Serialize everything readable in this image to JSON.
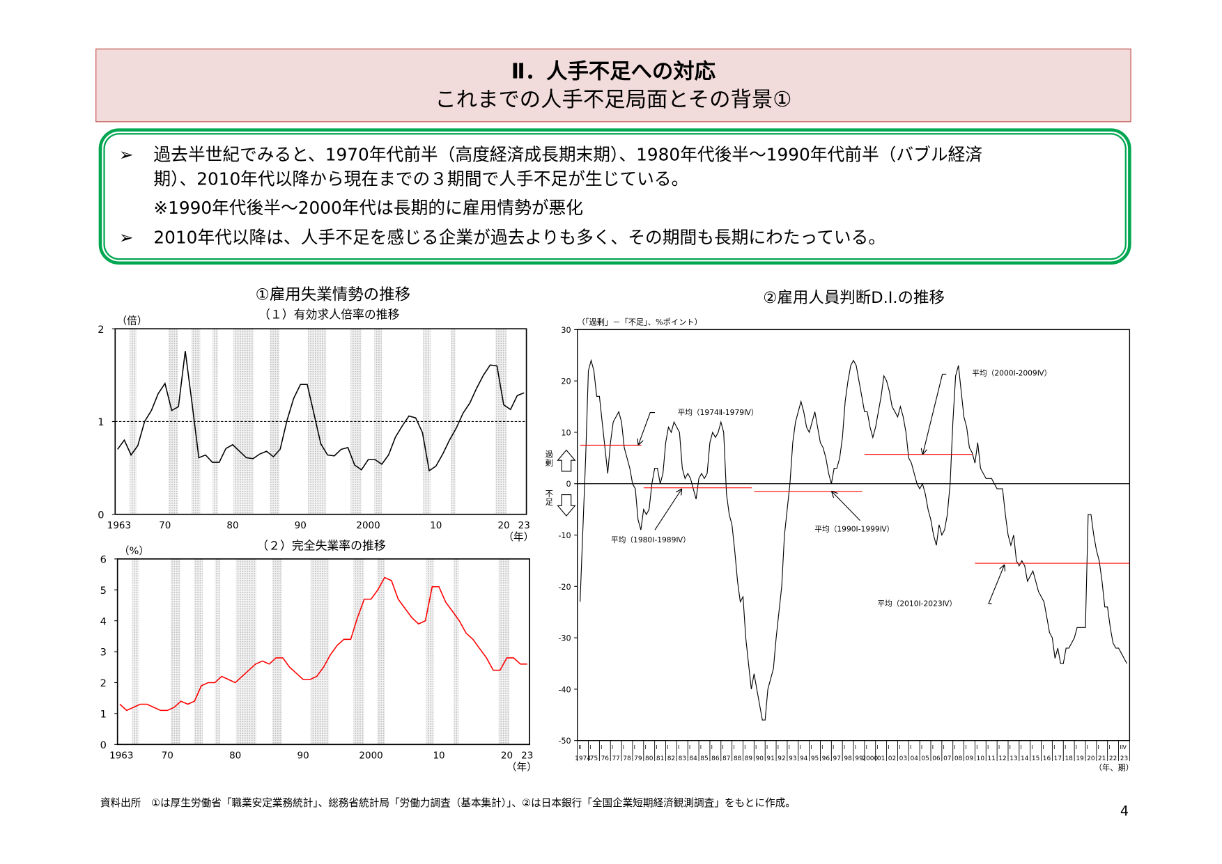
{
  "header": {
    "title_line1": "Ⅱ．人手不足への対応",
    "title_line2": "これまでの人手不足局面とその背景①"
  },
  "summary": {
    "bullet_icon": "arrowhead-bullet-icon",
    "items": [
      {
        "line1": "過去半世紀でみると、1970年代前半（高度経済成長期末期）、1980年代後半～1990年代前半（バブル経済",
        "line2": "期）、2010年代以降から現在までの３期間で人手不足が生じている。",
        "note": "※1990年代後半～2000年代は長期的に雇用情勢が悪化"
      },
      {
        "line1": "2010年代以降は、人手不足を感じる企業が過去よりも多く、その期間も長期にわたっている。"
      }
    ]
  },
  "section1_title": "①雇用失業情勢の推移",
  "section2_title": "②雇用人員判断D.I.の推移",
  "chart_data": [
    {
      "type": "line",
      "title": "（１）有効求人倍率の推移",
      "ylabel": "（倍）",
      "xlabel": "（年）",
      "ylim": [
        0,
        2
      ],
      "xlim": [
        1963,
        2023
      ],
      "y_ticks": [
        "0",
        "1",
        "2"
      ],
      "x_tick_values": [
        1963,
        1970,
        1980,
        1990,
        2000,
        2010,
        2020,
        2023
      ],
      "x_tick_labels": [
        "1963",
        "70",
        "80",
        "90",
        "2000",
        "10",
        "20",
        "23"
      ],
      "reference_line": 1,
      "line_color": "#000000",
      "shaded_periods": [
        [
          1964.8,
          1965.8
        ],
        [
          1970.5,
          1971.9
        ],
        [
          1973.9,
          1975.2
        ],
        [
          1977.0,
          1977.8
        ],
        [
          1980.1,
          1983.1
        ],
        [
          1985.5,
          1986.9
        ],
        [
          1991.1,
          1993.8
        ],
        [
          1997.4,
          1999.0
        ],
        [
          2000.9,
          2002.0
        ],
        [
          2008.1,
          2009.2
        ],
        [
          2012.2,
          2012.9
        ],
        [
          2018.8,
          2020.4
        ]
      ],
      "x": [
        1963,
        1964,
        1965,
        1966,
        1967,
        1968,
        1969,
        1970,
        1971,
        1972,
        1973,
        1974,
        1975,
        1976,
        1977,
        1978,
        1979,
        1980,
        1981,
        1982,
        1983,
        1984,
        1985,
        1986,
        1987,
        1988,
        1989,
        1990,
        1991,
        1992,
        1993,
        1994,
        1995,
        1996,
        1997,
        1998,
        1999,
        2000,
        2001,
        2002,
        2003,
        2004,
        2005,
        2006,
        2007,
        2008,
        2009,
        2010,
        2011,
        2012,
        2013,
        2014,
        2015,
        2016,
        2017,
        2018,
        2019,
        2020,
        2021,
        2022,
        2023
      ],
      "values": [
        0.7,
        0.8,
        0.64,
        0.74,
        1.0,
        1.12,
        1.3,
        1.41,
        1.12,
        1.16,
        1.76,
        1.2,
        0.61,
        0.64,
        0.56,
        0.56,
        0.71,
        0.75,
        0.68,
        0.61,
        0.6,
        0.65,
        0.68,
        0.62,
        0.7,
        1.01,
        1.25,
        1.4,
        1.4,
        1.08,
        0.76,
        0.64,
        0.63,
        0.7,
        0.72,
        0.53,
        0.48,
        0.59,
        0.59,
        0.54,
        0.64,
        0.83,
        0.95,
        1.06,
        1.04,
        0.88,
        0.47,
        0.52,
        0.65,
        0.8,
        0.93,
        1.09,
        1.2,
        1.36,
        1.5,
        1.61,
        1.6,
        1.18,
        1.13,
        1.28,
        1.31
      ]
    },
    {
      "type": "line",
      "title": "（２）完全失業率の推移",
      "ylabel": "（%）",
      "xlabel": "（年）",
      "ylim": [
        0,
        6
      ],
      "xlim": [
        1963,
        2023
      ],
      "y_ticks": [
        "0",
        "1",
        "2",
        "3",
        "4",
        "5",
        "6"
      ],
      "x_tick_values": [
        1963,
        1970,
        1980,
        1990,
        2000,
        2010,
        2020,
        2023
      ],
      "x_tick_labels": [
        "1963",
        "70",
        "80",
        "90",
        "2000",
        "10",
        "20",
        "23"
      ],
      "line_color": "#ff0000",
      "shaded_periods": [
        [
          1964.8,
          1965.8
        ],
        [
          1970.5,
          1971.9
        ],
        [
          1973.9,
          1975.2
        ],
        [
          1977.0,
          1977.8
        ],
        [
          1980.1,
          1983.1
        ],
        [
          1985.5,
          1986.9
        ],
        [
          1991.1,
          1993.8
        ],
        [
          1997.4,
          1999.0
        ],
        [
          2000.9,
          2002.0
        ],
        [
          2008.1,
          2009.2
        ],
        [
          2012.2,
          2012.9
        ],
        [
          2018.8,
          2020.4
        ]
      ],
      "x": [
        1963,
        1964,
        1965,
        1966,
        1967,
        1968,
        1969,
        1970,
        1971,
        1972,
        1973,
        1974,
        1975,
        1976,
        1977,
        1978,
        1979,
        1980,
        1981,
        1982,
        1983,
        1984,
        1985,
        1986,
        1987,
        1988,
        1989,
        1990,
        1991,
        1992,
        1993,
        1994,
        1995,
        1996,
        1997,
        1998,
        1999,
        2000,
        2001,
        2002,
        2003,
        2004,
        2005,
        2006,
        2007,
        2008,
        2009,
        2010,
        2011,
        2012,
        2013,
        2014,
        2015,
        2016,
        2017,
        2018,
        2019,
        2020,
        2021,
        2022,
        2023
      ],
      "values": [
        1.3,
        1.1,
        1.2,
        1.3,
        1.3,
        1.2,
        1.1,
        1.1,
        1.2,
        1.4,
        1.3,
        1.4,
        1.9,
        2.0,
        2.0,
        2.2,
        2.1,
        2.0,
        2.2,
        2.4,
        2.6,
        2.7,
        2.6,
        2.8,
        2.8,
        2.5,
        2.3,
        2.1,
        2.1,
        2.2,
        2.5,
        2.9,
        3.2,
        3.4,
        3.4,
        4.1,
        4.7,
        4.7,
        5.0,
        5.4,
        5.3,
        4.7,
        4.4,
        4.1,
        3.9,
        4.0,
        5.1,
        5.1,
        4.6,
        4.3,
        4.0,
        3.6,
        3.4,
        3.1,
        2.8,
        2.4,
        2.4,
        2.8,
        2.8,
        2.6,
        2.6
      ]
    },
    {
      "type": "line",
      "title": "",
      "ylabel": "（「過剰」－「不足」、%ポイント）",
      "xlabel": "（年、期）",
      "ylim": [
        -50,
        30
      ],
      "xlim": [
        1974,
        2024
      ],
      "y_ticks": [
        -50,
        -40,
        -30,
        -20,
        -10,
        0,
        10,
        20,
        30
      ],
      "excess_label": "過剰",
      "shortage_label": "不足",
      "x_year_labels": [
        "1974",
        "75",
        "76",
        "77",
        "78",
        "79",
        "80",
        "81",
        "82",
        "83",
        "84",
        "85",
        "86",
        "87",
        "88",
        "89",
        "90",
        "91",
        "92",
        "93",
        "94",
        "95",
        "96",
        "97",
        "98",
        "99",
        "2000",
        "01",
        "02",
        "03",
        "04",
        "05",
        "06",
        "07",
        "08",
        "09",
        "10",
        "11",
        "12",
        "13",
        "14",
        "15",
        "16",
        "17",
        "18",
        "19",
        "20",
        "21",
        "22",
        "23"
      ],
      "x_quarter_first": "Ⅱ",
      "x_quarter_default": "Ⅰ",
      "x_quarter_last": "Ⅳ",
      "line_color": "#000000",
      "average_color": "#ff0000",
      "averages": [
        {
          "label": "平均（1974Ⅱ-1979Ⅳ）",
          "from": 1974.25,
          "to": 1980.0,
          "value": 7.5
        },
        {
          "label": "平均（1980Ⅰ-1989Ⅳ）",
          "from": 1980.0,
          "to": 1990.0,
          "value": -0.8
        },
        {
          "label": "平均（1990Ⅰ-1999Ⅳ）",
          "from": 1990.0,
          "to": 2000.0,
          "value": -1.5
        },
        {
          "label": "平均（2000Ⅰ-2009Ⅳ）",
          "from": 2000.0,
          "to": 2010.0,
          "value": 5.7
        },
        {
          "label": "平均（2010Ⅰ-2023Ⅳ）",
          "from": 2010.0,
          "to": 2024.0,
          "value": -15.5
        }
      ],
      "points": [
        [
          1974.25,
          -23
        ],
        [
          1974.75,
          5
        ],
        [
          1975.0,
          22
        ],
        [
          1975.25,
          24
        ],
        [
          1975.5,
          22
        ],
        [
          1975.75,
          17
        ],
        [
          1976.0,
          17
        ],
        [
          1976.25,
          12
        ],
        [
          1976.75,
          2
        ],
        [
          1977.0,
          8
        ],
        [
          1977.25,
          12
        ],
        [
          1977.75,
          14
        ],
        [
          1978.0,
          12
        ],
        [
          1978.25,
          7
        ],
        [
          1978.75,
          3
        ],
        [
          1979.0,
          0
        ],
        [
          1979.25,
          -1
        ],
        [
          1979.5,
          -7
        ],
        [
          1979.75,
          -9
        ],
        [
          1980.0,
          -5
        ],
        [
          1980.25,
          -6
        ],
        [
          1980.5,
          -5
        ],
        [
          1980.75,
          0
        ],
        [
          1981.0,
          3
        ],
        [
          1981.25,
          3
        ],
        [
          1981.5,
          0
        ],
        [
          1981.75,
          2
        ],
        [
          1982.0,
          8
        ],
        [
          1982.25,
          11
        ],
        [
          1982.5,
          10
        ],
        [
          1982.75,
          12
        ],
        [
          1983.25,
          10
        ],
        [
          1983.5,
          3
        ],
        [
          1983.75,
          1
        ],
        [
          1984.0,
          2
        ],
        [
          1984.25,
          1
        ],
        [
          1984.5,
          -1
        ],
        [
          1984.75,
          -3
        ],
        [
          1985.0,
          1
        ],
        [
          1985.25,
          2
        ],
        [
          1985.5,
          1
        ],
        [
          1985.75,
          2
        ],
        [
          1986.0,
          8
        ],
        [
          1986.25,
          10
        ],
        [
          1986.5,
          9
        ],
        [
          1986.75,
          10
        ],
        [
          1987.0,
          12
        ],
        [
          1987.25,
          10
        ],
        [
          1987.5,
          -2
        ],
        [
          1987.75,
          -6
        ],
        [
          1988.0,
          -8
        ],
        [
          1988.25,
          -13
        ],
        [
          1988.5,
          -19
        ],
        [
          1988.75,
          -23
        ],
        [
          1989.0,
          -22
        ],
        [
          1989.25,
          -30
        ],
        [
          1989.5,
          -35
        ],
        [
          1989.75,
          -40
        ],
        [
          1990.0,
          -37
        ],
        [
          1990.25,
          -40
        ],
        [
          1990.75,
          -46
        ],
        [
          1991.0,
          -46
        ],
        [
          1991.25,
          -40
        ],
        [
          1991.75,
          -36
        ],
        [
          1992.0,
          -30
        ],
        [
          1992.5,
          -20
        ],
        [
          1992.75,
          -10
        ],
        [
          1993.25,
          0
        ],
        [
          1993.5,
          8
        ],
        [
          1993.75,
          12
        ],
        [
          1994.25,
          16
        ],
        [
          1994.5,
          14
        ],
        [
          1994.75,
          11
        ],
        [
          1995.0,
          10
        ],
        [
          1995.5,
          14
        ],
        [
          1995.75,
          11
        ],
        [
          1996.0,
          8
        ],
        [
          1996.25,
          7
        ],
        [
          1996.5,
          5
        ],
        [
          1996.75,
          2
        ],
        [
          1997.0,
          0
        ],
        [
          1997.25,
          3
        ],
        [
          1997.5,
          3
        ],
        [
          1997.75,
          5
        ],
        [
          1998.0,
          9
        ],
        [
          1998.25,
          16
        ],
        [
          1998.5,
          20
        ],
        [
          1998.75,
          23
        ],
        [
          1999.0,
          24
        ],
        [
          1999.25,
          23
        ],
        [
          1999.5,
          20
        ],
        [
          1999.75,
          17
        ],
        [
          2000.0,
          14
        ],
        [
          2000.25,
          14
        ],
        [
          2000.5,
          11
        ],
        [
          2000.75,
          9
        ],
        [
          2001.0,
          11
        ],
        [
          2001.5,
          17
        ],
        [
          2001.75,
          21
        ],
        [
          2002.0,
          20
        ],
        [
          2002.25,
          18
        ],
        [
          2002.5,
          15
        ],
        [
          2002.75,
          14
        ],
        [
          2003.0,
          13
        ],
        [
          2003.25,
          15
        ],
        [
          2003.5,
          13
        ],
        [
          2003.75,
          10
        ],
        [
          2004.0,
          5
        ],
        [
          2004.25,
          4
        ],
        [
          2004.5,
          2
        ],
        [
          2004.75,
          0
        ],
        [
          2005.0,
          -1
        ],
        [
          2005.25,
          0
        ],
        [
          2005.5,
          -2
        ],
        [
          2005.75,
          -5
        ],
        [
          2006.0,
          -7
        ],
        [
          2006.25,
          -10
        ],
        [
          2006.5,
          -12
        ],
        [
          2006.75,
          -8
        ],
        [
          2007.0,
          -10
        ],
        [
          2007.25,
          -9
        ],
        [
          2007.5,
          -6
        ],
        [
          2007.75,
          0
        ],
        [
          2008.0,
          12
        ],
        [
          2008.25,
          21
        ],
        [
          2008.5,
          23
        ],
        [
          2008.75,
          18
        ],
        [
          2009.0,
          13
        ],
        [
          2009.25,
          11
        ],
        [
          2009.5,
          7
        ],
        [
          2009.75,
          6
        ],
        [
          2010.0,
          4
        ],
        [
          2010.25,
          8
        ],
        [
          2010.5,
          3
        ],
        [
          2010.75,
          2
        ],
        [
          2011.0,
          1
        ],
        [
          2011.5,
          1
        ],
        [
          2011.75,
          0
        ],
        [
          2012.0,
          -1
        ],
        [
          2012.5,
          -1
        ],
        [
          2012.75,
          -6
        ],
        [
          2013.0,
          -10
        ],
        [
          2013.25,
          -12
        ],
        [
          2013.5,
          -10
        ],
        [
          2013.75,
          -15
        ],
        [
          2014.0,
          -16
        ],
        [
          2014.25,
          -15
        ],
        [
          2014.5,
          -16
        ],
        [
          2014.75,
          -19
        ],
        [
          2015.0,
          -18
        ],
        [
          2015.25,
          -17
        ],
        [
          2015.5,
          -19
        ],
        [
          2015.75,
          -21
        ],
        [
          2016.25,
          -23
        ],
        [
          2016.5,
          -26
        ],
        [
          2016.75,
          -29
        ],
        [
          2017.0,
          -30
        ],
        [
          2017.25,
          -34
        ],
        [
          2017.5,
          -32
        ],
        [
          2017.75,
          -35
        ],
        [
          2018.0,
          -35
        ],
        [
          2018.25,
          -32
        ],
        [
          2018.5,
          -32
        ],
        [
          2018.75,
          -31
        ],
        [
          2019.0,
          -30
        ],
        [
          2019.25,
          -28
        ],
        [
          2019.75,
          -28
        ],
        [
          2020.0,
          -28
        ],
        [
          2020.25,
          -6
        ],
        [
          2020.5,
          -6
        ],
        [
          2020.75,
          -10
        ],
        [
          2021.0,
          -13
        ],
        [
          2021.25,
          -15
        ],
        [
          2021.5,
          -19
        ],
        [
          2021.75,
          -24
        ],
        [
          2022.0,
          -24
        ],
        [
          2022.25,
          -28
        ],
        [
          2022.5,
          -31
        ],
        [
          2022.75,
          -32
        ],
        [
          2023.0,
          -32
        ],
        [
          2023.25,
          -33
        ],
        [
          2023.75,
          -35
        ]
      ]
    }
  ],
  "footer": {
    "source": "資料出所　①は厚生労働省「職業安定業務統計」、総務省統計局「労働力調査（基本集計）」、②は日本銀行「全国企業短期経済観測調査」をもとに作成。",
    "page_number": "4"
  }
}
